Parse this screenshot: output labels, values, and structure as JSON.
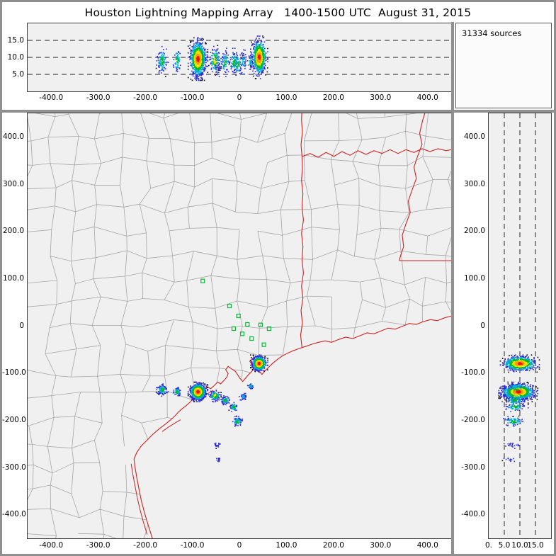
{
  "title": "Houston Lightning Mapping Array   1400-1500 UTC  August 31, 2015",
  "sources_panel": {
    "label": "31334 sources"
  },
  "colors": {
    "window_bg": "#ffffff",
    "frame": "#8f8f8f",
    "plot_bg": "#f0f0f0",
    "plot_border": "#3e3e3e",
    "county_line": "#a6a6a6",
    "state_line": "#cc2222",
    "station": "#00bb33",
    "dash_line": "#222222",
    "colormap": [
      "#2b2bd0",
      "#00aadd",
      "#00bb22",
      "#eee000",
      "#ff9900",
      "#ee1100"
    ]
  },
  "chart_data": {
    "type": "scatter",
    "title": "Houston Lightning Mapping Array",
    "time_range_utc": "1400-1500 UTC",
    "date": "August 31, 2015",
    "n_sources": 31334,
    "panels": {
      "ew_alt": {
        "x_range": [
          -450,
          450
        ],
        "alt_range": [
          0,
          20
        ],
        "alt_tick_values": [
          15,
          10,
          5
        ],
        "alt_tick_labels": [
          "15.0",
          "10.0",
          "5.0"
        ],
        "dashed_alt_lines": [
          5,
          10,
          15
        ]
      },
      "plan": {
        "x_range": [
          -450,
          450
        ],
        "y_range": [
          -450,
          450
        ],
        "x_tick_values": [
          -400,
          -300,
          -200,
          -100,
          0,
          100,
          200,
          300,
          400
        ],
        "x_tick_labels": [
          "-400.0",
          "-300.0",
          "-200.0",
          "-100.0",
          "0",
          "100.0",
          "200.0",
          "300.0",
          "400.0"
        ],
        "y_tick_values": [
          400,
          300,
          200,
          100,
          0,
          -100,
          -200,
          -300,
          -400
        ],
        "y_tick_labels": [
          "400.0",
          "300.0",
          "200.0",
          "100.0",
          "0",
          "-100.0",
          "-200.0",
          "-300.0",
          "-400.0"
        ]
      },
      "alt_ns": {
        "alt_range": [
          0,
          20
        ],
        "y_range": [
          -450,
          450
        ],
        "alt_tick_values": [
          0,
          5,
          10,
          15
        ],
        "alt_tick_labels": [
          "0.",
          "5.0",
          "10.0",
          "15.0"
        ],
        "dashed_alt_lines": [
          5,
          10,
          15
        ]
      }
    },
    "clusters": [
      {
        "ew": -88,
        "ns": -140,
        "alt": 9.5,
        "sxy": 8,
        "salt": 2.4,
        "n": 1000,
        "max_level": 5
      },
      {
        "ew": 42,
        "ns": -80,
        "alt": 10,
        "sxy": 7,
        "salt": 2.4,
        "n": 700,
        "max_level": 5
      },
      {
        "ew": -164,
        "ns": -136,
        "alt": 9,
        "sxy": 5,
        "salt": 1.8,
        "n": 110,
        "max_level": 2
      },
      {
        "ew": -132,
        "ns": -140,
        "alt": 9,
        "sxy": 4,
        "salt": 1.6,
        "n": 70,
        "max_level": 2
      },
      {
        "ew": -52,
        "ns": -148,
        "alt": 9,
        "sxy": 5,
        "salt": 1.8,
        "n": 110,
        "max_level": 3
      },
      {
        "ew": -30,
        "ns": -158,
        "alt": 8.5,
        "sxy": 4,
        "salt": 1.6,
        "n": 80,
        "max_level": 2
      },
      {
        "ew": -12,
        "ns": -172,
        "alt": 8.5,
        "sxy": 4,
        "salt": 1.6,
        "n": 70,
        "max_level": 2
      },
      {
        "ew": 8,
        "ns": -150,
        "alt": 9,
        "sxy": 3.5,
        "salt": 1.5,
        "n": 50,
        "max_level": 1
      },
      {
        "ew": 24,
        "ns": -128,
        "alt": 9,
        "sxy": 3,
        "salt": 1.4,
        "n": 40,
        "max_level": 1
      },
      {
        "ew": -4,
        "ns": -203,
        "alt": 8,
        "sxy": 4.5,
        "salt": 1.6,
        "n": 80,
        "max_level": 2
      },
      {
        "ew": -46,
        "ns": -252,
        "alt": 7.5,
        "sxy": 3,
        "salt": 1.2,
        "n": 22,
        "max_level": 0
      },
      {
        "ew": -44,
        "ns": -283,
        "alt": 7,
        "sxy": 2.5,
        "salt": 1.0,
        "n": 14,
        "max_level": 0
      }
    ],
    "stations": [
      [
        -78,
        95
      ],
      [
        -21,
        42
      ],
      [
        -2,
        21
      ],
      [
        17,
        3
      ],
      [
        -12,
        -6
      ],
      [
        6,
        -17
      ],
      [
        26,
        -27
      ],
      [
        45,
        2
      ],
      [
        63,
        -6
      ],
      [
        52,
        -40
      ]
    ],
    "map_lines": {
      "coast": [
        [
          -185,
          -450
        ],
        [
          -193,
          -425
        ],
        [
          -201,
          -398
        ],
        [
          -208,
          -372
        ],
        [
          -213,
          -348
        ],
        [
          -218,
          -322
        ],
        [
          -222,
          -298
        ],
        [
          -224,
          -282
        ],
        [
          -218,
          -268
        ],
        [
          -209,
          -255
        ],
        [
          -197,
          -243
        ],
        [
          -184,
          -230
        ],
        [
          -170,
          -218
        ],
        [
          -157,
          -208
        ],
        [
          -146,
          -199
        ],
        [
          -137,
          -191
        ],
        [
          -130,
          -183
        ],
        [
          -122,
          -176
        ],
        [
          -113,
          -169
        ],
        [
          -104,
          -161
        ],
        [
          -97,
          -153
        ],
        [
          -101,
          -146
        ],
        [
          -93,
          -139
        ],
        [
          -85,
          -143
        ],
        [
          -77,
          -136
        ],
        [
          -69,
          -129
        ],
        [
          -61,
          -133
        ],
        [
          -53,
          -126
        ],
        [
          -46,
          -119
        ],
        [
          -40,
          -123
        ],
        [
          -33,
          -116
        ],
        [
          -27,
          -109
        ],
        [
          -24,
          -101
        ],
        [
          -29,
          -93
        ],
        [
          -24,
          -86
        ],
        [
          -17,
          -91
        ],
        [
          -9,
          -96
        ],
        [
          -4,
          -103
        ],
        [
          1,
          -111
        ],
        [
          7,
          -118
        ],
        [
          13,
          -111
        ],
        [
          19,
          -104
        ],
        [
          26,
          -97
        ],
        [
          31,
          -90
        ],
        [
          27,
          -82
        ],
        [
          22,
          -75
        ],
        [
          28,
          -69
        ],
        [
          36,
          -73
        ],
        [
          43,
          -79
        ],
        [
          47,
          -88
        ],
        [
          42,
          -96
        ],
        [
          48,
          -103
        ],
        [
          55,
          -95
        ],
        [
          63,
          -87
        ],
        [
          71,
          -79
        ],
        [
          81,
          -71
        ],
        [
          91,
          -64
        ],
        [
          102,
          -58
        ],
        [
          114,
          -53
        ],
        [
          127,
          -48
        ],
        [
          140,
          -44
        ],
        [
          154,
          -39
        ],
        [
          168,
          -35
        ],
        [
          182,
          -32
        ],
        [
          196,
          -35
        ],
        [
          211,
          -29
        ],
        [
          226,
          -24
        ],
        [
          241,
          -27
        ],
        [
          256,
          -21
        ],
        [
          271,
          -15
        ],
        [
          286,
          -17
        ],
        [
          301,
          -11
        ],
        [
          316,
          -5
        ],
        [
          331,
          -7
        ],
        [
          346,
          -1
        ],
        [
          361,
          5
        ],
        [
          376,
          3
        ],
        [
          391,
          9
        ],
        [
          406,
          13
        ],
        [
          421,
          11
        ],
        [
          436,
          17
        ],
        [
          452,
          21
        ]
      ],
      "tx_la_border": [
        [
          133,
          -46
        ],
        [
          130,
          -20
        ],
        [
          134,
          6
        ],
        [
          131,
          32
        ],
        [
          135,
          58
        ],
        [
          132,
          84
        ],
        [
          136,
          112
        ],
        [
          133,
          140
        ],
        [
          135,
          168
        ],
        [
          132,
          196
        ],
        [
          136,
          224
        ],
        [
          133,
          252
        ],
        [
          135,
          280
        ],
        [
          132,
          308
        ],
        [
          134,
          334
        ],
        [
          133,
          358
        ]
      ],
      "red_river": [
        [
          133,
          358
        ],
        [
          150,
          365
        ],
        [
          167,
          357
        ],
        [
          184,
          367
        ],
        [
          201,
          359
        ],
        [
          218,
          369
        ],
        [
          235,
          361
        ],
        [
          252,
          371
        ],
        [
          269,
          363
        ],
        [
          286,
          371
        ],
        [
          303,
          365
        ],
        [
          320,
          373
        ],
        [
          337,
          365
        ],
        [
          354,
          373
        ],
        [
          371,
          367
        ],
        [
          388,
          375
        ],
        [
          405,
          369
        ],
        [
          422,
          375
        ],
        [
          439,
          371
        ],
        [
          455,
          374
        ]
      ],
      "north_border": [
        [
          133,
          358
        ],
        [
          131,
          384
        ],
        [
          134,
          410
        ],
        [
          132,
          436
        ],
        [
          133,
          460
        ]
      ],
      "river_east": [
        [
          397,
          460
        ],
        [
          389,
          434
        ],
        [
          383,
          408
        ],
        [
          388,
          384
        ],
        [
          379,
          360
        ],
        [
          371,
          336
        ],
        [
          376,
          312
        ],
        [
          367,
          288
        ],
        [
          359,
          264
        ],
        [
          363,
          240
        ],
        [
          354,
          216
        ],
        [
          346,
          192
        ],
        [
          349,
          168
        ],
        [
          341,
          144
        ],
        [
          340,
          138
        ]
      ],
      "la_ar_border": [
        [
          340,
          138
        ],
        [
          460,
          138
        ]
      ],
      "islands": [
        [
          [
            -196,
            -442
          ],
          [
            -204,
            -416
          ],
          [
            -211,
            -390
          ],
          [
            -217,
            -364
          ],
          [
            -222,
            -338
          ],
          [
            -227,
            -312
          ],
          [
            -230,
            -292
          ]
        ],
        [
          [
            -164,
            -224
          ],
          [
            -150,
            -214
          ],
          [
            -137,
            -206
          ],
          [
            -125,
            -199
          ]
        ],
        [
          [
            -80,
            -152
          ],
          [
            -68,
            -144
          ],
          [
            -56,
            -137
          ]
        ]
      ]
    }
  }
}
